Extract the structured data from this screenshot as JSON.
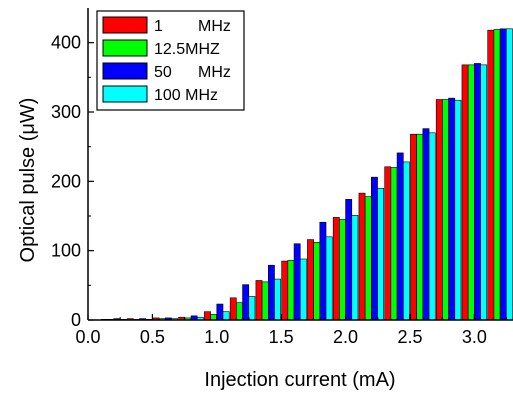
{
  "chart_data": {
    "type": "bar",
    "title": "",
    "xlabel": "Injection current (mA)",
    "ylabel": "Optical pulse (μW)",
    "xlim": [
      0.0,
      3.3
    ],
    "ylim": [
      0,
      450
    ],
    "x_ticks": [
      "0.0",
      "0.5",
      "1.0",
      "1.5",
      "2.0",
      "2.5",
      "3.0"
    ],
    "y_ticks": [
      "0",
      "100",
      "200",
      "300",
      "400"
    ],
    "grid": false,
    "legend_position": "top-left",
    "x": [
      0.2,
      0.4,
      0.6,
      0.8,
      1.0,
      1.2,
      1.4,
      1.6,
      1.8,
      2.0,
      2.2,
      2.4,
      2.6,
      2.8,
      3.0,
      3.2
    ],
    "series": [
      {
        "name": "1",
        "unit": "MHz",
        "color": "#ff0000",
        "values": [
          1,
          2,
          3,
          4,
          12,
          32,
          57,
          85,
          116,
          148,
          183,
          221,
          268,
          318,
          368,
          418
        ]
      },
      {
        "name": "12.5MHZ",
        "unit": "",
        "color": "#00ff00",
        "values": [
          1,
          1,
          2,
          3,
          8,
          25,
          55,
          86,
          112,
          145,
          178,
          220,
          268,
          318,
          368,
          419
        ]
      },
      {
        "name": "50",
        "unit": "MHz",
        "color": "#0000ff",
        "values": [
          2,
          2,
          3,
          6,
          23,
          51,
          79,
          110,
          141,
          174,
          206,
          241,
          276,
          320,
          370,
          420
        ]
      },
      {
        "name": "100 MHz",
        "unit": "",
        "color": "#00ffff",
        "values": [
          1,
          1,
          2,
          4,
          12,
          34,
          59,
          88,
          120,
          151,
          190,
          228,
          270,
          317,
          368,
          420
        ]
      }
    ]
  }
}
